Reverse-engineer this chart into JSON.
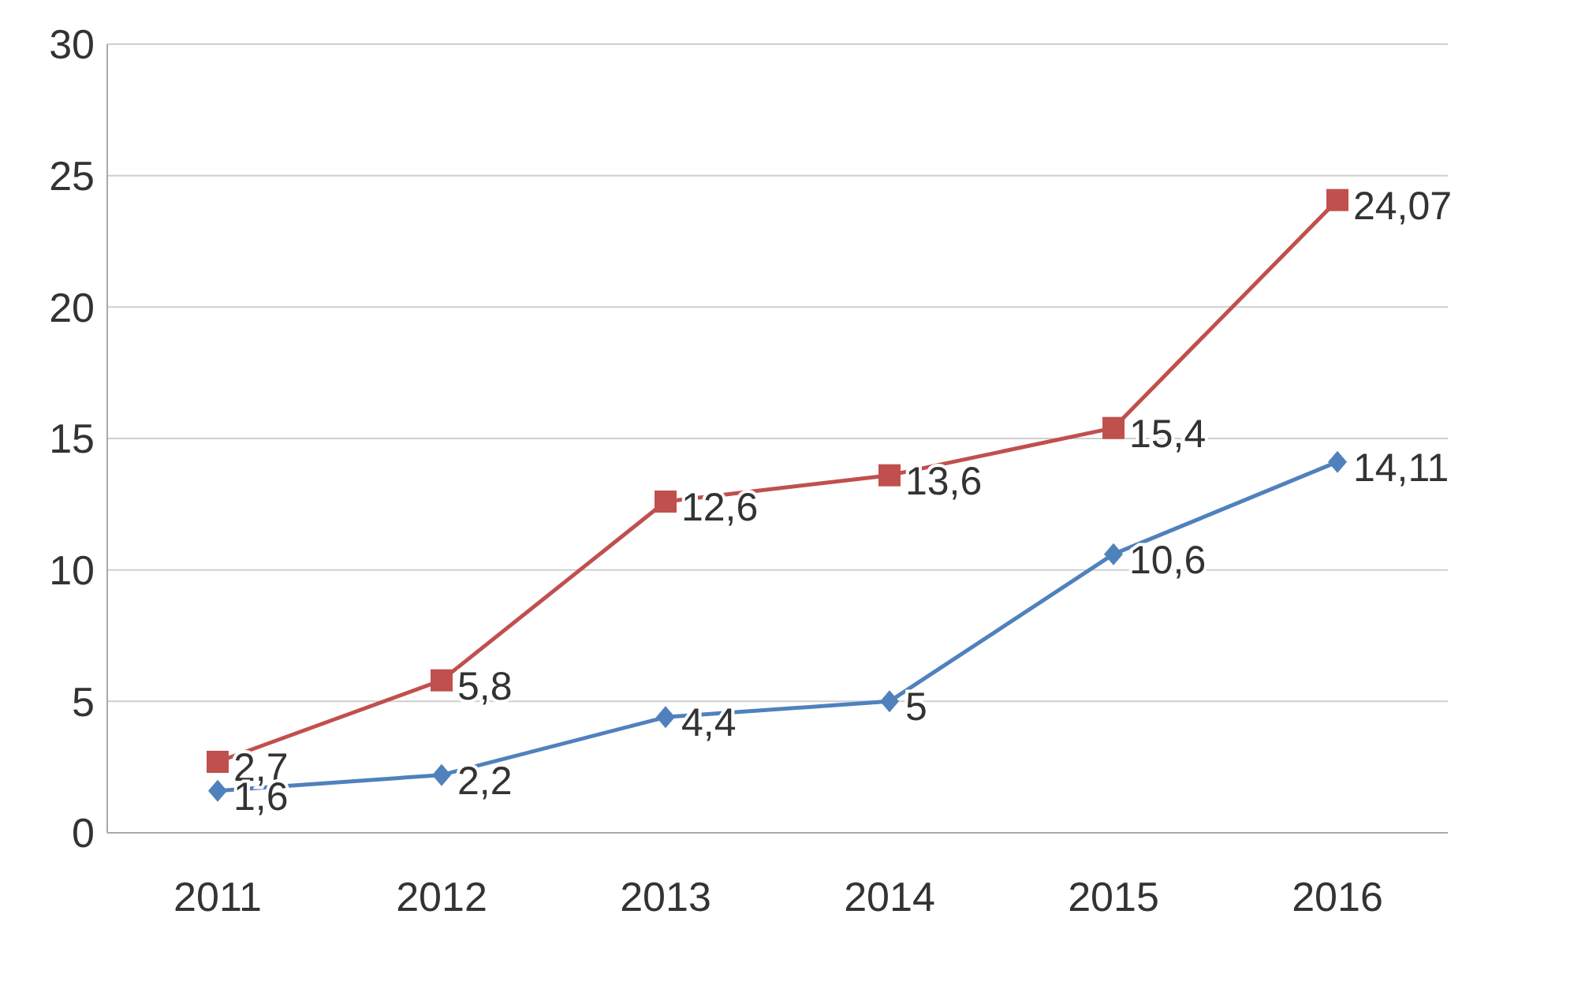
{
  "chart_data": {
    "type": "line",
    "categories": [
      "2011",
      "2012",
      "2013",
      "2014",
      "2015",
      "2016"
    ],
    "series": [
      {
        "color": "#c0504d",
        "marker": "square",
        "values": [
          2.7,
          5.8,
          12.6,
          13.6,
          15.4,
          24.07
        ],
        "value_labels": [
          "2,7",
          "5,8",
          "12,6",
          "13,6",
          "15,4",
          "24,07"
        ]
      },
      {
        "color": "#4f81bd",
        "marker": "diamond",
        "values": [
          1.6,
          2.2,
          4.4,
          5,
          10.6,
          14.11
        ],
        "value_labels": [
          "1,6",
          "2,2",
          "4,4",
          "5",
          "10,6",
          "14,11"
        ]
      }
    ],
    "ylim": [
      0,
      30
    ],
    "yticks": [
      0,
      5,
      10,
      15,
      20,
      25,
      30
    ],
    "grid": "y",
    "legend": false
  }
}
